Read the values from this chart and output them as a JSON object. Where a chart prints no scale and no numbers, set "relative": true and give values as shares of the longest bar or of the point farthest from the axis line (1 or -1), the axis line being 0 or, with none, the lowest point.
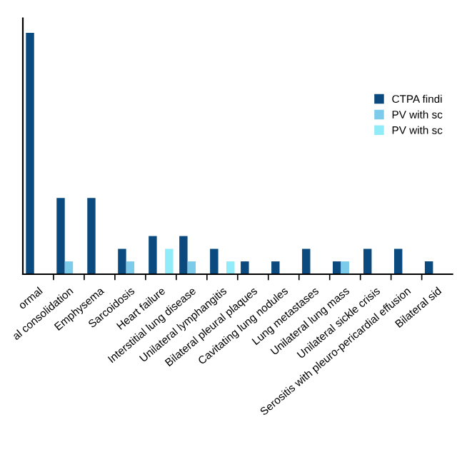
{
  "chart_data": {
    "type": "bar",
    "relative": true,
    "categories": [
      "ormal",
      "al consolidation",
      "Emphysema",
      "Sarcoidosis",
      "Heart failure",
      "Interstitial lung disease",
      "Unilateral lymphangitis",
      "Bilateral pleural plaques",
      "Cavitating lung nodules",
      "Lung metastases",
      "Unilateral lung mass",
      "Unilateral sickle crisis",
      "Serositis with pleuro-pericardial effusion",
      "Bilateral sid"
    ],
    "series": [
      {
        "name": "CTPA findi",
        "color": "#0b4a7e",
        "values": [
          1,
          0.316,
          0.316,
          0.105,
          0.158,
          0.158,
          0.105,
          0.053,
          0.053,
          0.105,
          0.053,
          0.105,
          0.105,
          0.053
        ]
      },
      {
        "name": "PV with sc",
        "color": "#7ccbea",
        "values": [
          null,
          0.053,
          null,
          0.053,
          null,
          0.053,
          null,
          null,
          null,
          null,
          0.053,
          null,
          null,
          null
        ]
      },
      {
        "name": "PV with sc",
        "color": "#90ecf8",
        "values": [
          null,
          null,
          null,
          null,
          0.105,
          null,
          0.053,
          null,
          null,
          null,
          null,
          null,
          null,
          null
        ]
      }
    ],
    "tick_labels": "x",
    "legend": "right",
    "grid": false
  }
}
